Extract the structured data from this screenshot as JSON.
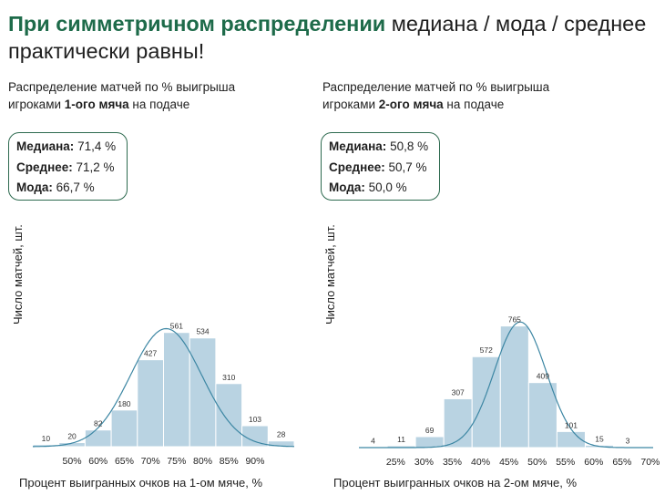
{
  "heading": {
    "accent": "При симметричном распределении",
    "rest": " медиана / мода / среднее практически равны!"
  },
  "chart_data": [
    {
      "type": "bar",
      "subtitle_line1": "Распределение матчей по % выигрыша",
      "subtitle_pre": "игроками ",
      "subtitle_bold": "1-ого мяча",
      "subtitle_post": " на подаче",
      "stats": [
        {
          "key": "Медиана:",
          "value": "71,4 %"
        },
        {
          "key": "Среднее:",
          "value": "71,2 %"
        },
        {
          "key": "Мода:",
          "value": "66,7 %"
        }
      ],
      "ylabel": "Число матчей, шт.",
      "xlabel": "Процент выигранных очков на 1-ом мяче, %",
      "bins_start": 45,
      "bin_width": 5,
      "values": [
        10,
        20,
        82,
        180,
        427,
        561,
        534,
        310,
        103,
        28
      ],
      "value_labels": [
        "10",
        "20",
        "82",
        "180",
        "427",
        "561",
        "534",
        "310",
        "103",
        "28"
      ],
      "ymax": 600,
      "tick_labels": [
        "50%",
        "60%",
        "65%",
        "70%",
        "75%",
        "80%",
        "85%",
        "90%"
      ],
      "tick_positions": [
        52.5,
        57.5,
        62.5,
        67.5,
        72.5,
        77.5,
        82.5,
        87.5
      ],
      "xlim": [
        45,
        95
      ],
      "curve_mean": 70.5,
      "curve_sd": 6.8,
      "curve_peak": 580
    },
    {
      "type": "bar",
      "subtitle_line1": "Распределение матчей по % выигрыша",
      "subtitle_pre": "игроками ",
      "subtitle_bold": "2-ого мяча",
      "subtitle_post": " на подаче",
      "stats": [
        {
          "key": "Медиана:",
          "value": "50,8 %"
        },
        {
          "key": "Среднее:",
          "value": "50,7 %"
        },
        {
          "key": "Мода:",
          "value": "50,0 %"
        }
      ],
      "ylabel": "Число матчей, шт.",
      "xlabel": "Процент выигранных очков на 2-ом мяче, %",
      "bins_start": 20,
      "bin_width": 5,
      "values": [
        4,
        11,
        69,
        307,
        572,
        765,
        409,
        101,
        15,
        3
      ],
      "value_labels": [
        "4",
        "11",
        "69",
        "307",
        "572",
        "765",
        "409",
        "101",
        "15",
        "3"
      ],
      "ymax": 820,
      "tick_labels": [
        "25%",
        "30%",
        "35%",
        "40%",
        "45%",
        "50%",
        "55%",
        "60%",
        "65%",
        "70%"
      ],
      "tick_positions": [
        26.5,
        31.5,
        36.5,
        41.5,
        46.5,
        51.5,
        56.5,
        61.5,
        66.5,
        71.5
      ],
      "xlim": [
        20,
        72
      ],
      "curve_mean": 48.5,
      "curve_sd": 4.6,
      "curve_peak": 790
    }
  ]
}
